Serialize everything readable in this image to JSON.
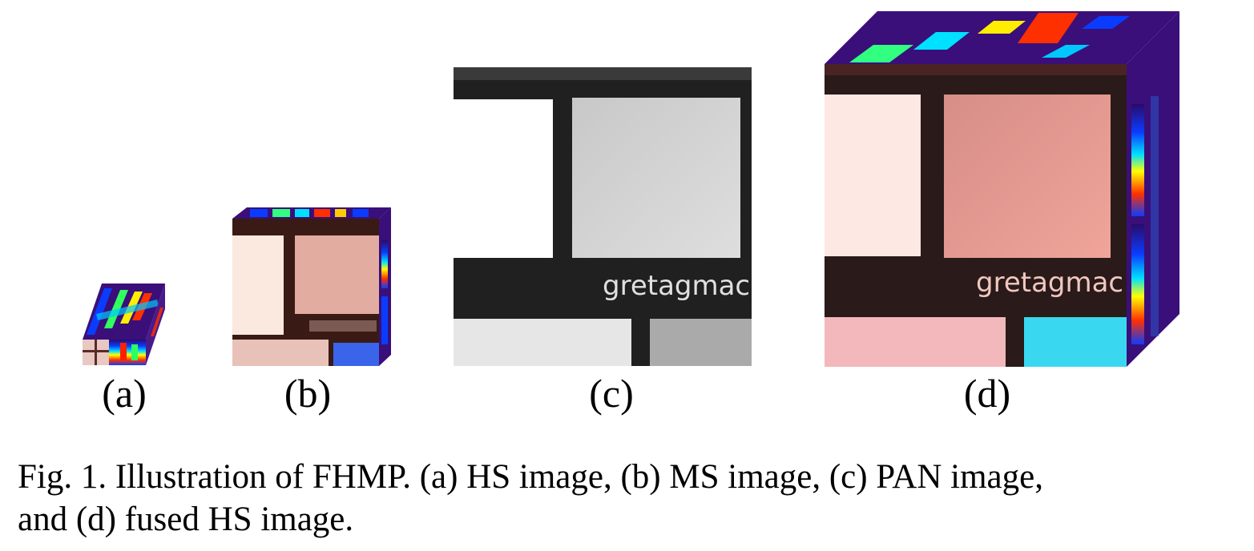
{
  "figure": {
    "panels": [
      {
        "id": "a",
        "label": "(a)"
      },
      {
        "id": "b",
        "label": "(b)"
      },
      {
        "id": "c",
        "label": "(c)",
        "watermark": "gretagmac"
      },
      {
        "id": "d",
        "label": "(d)",
        "watermark": "gretagmac"
      }
    ],
    "caption": {
      "line1": "Fig. 1.   Illustration of FHMP. (a) HS image, (b) MS image, (c) PAN image,",
      "line2": "and (d) fused HS image."
    }
  }
}
